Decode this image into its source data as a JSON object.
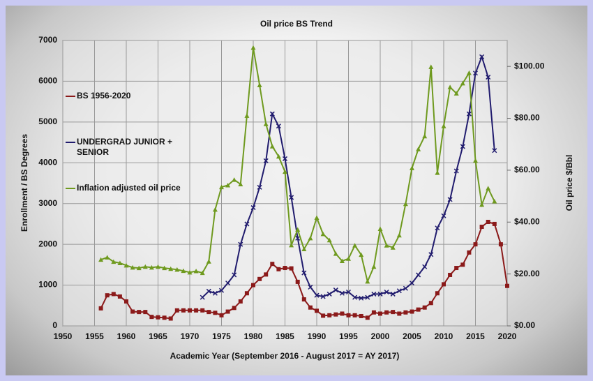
{
  "chart_data": {
    "type": "line",
    "title": "Oil price BS Trend",
    "x_label": "Academic Year (September 2016 - August 2017 = AY 2017)",
    "y_label": "Enrollment / BS Degrees",
    "y2_label": "Oil price $/Bbl",
    "x": [
      1956,
      1957,
      1958,
      1959,
      1960,
      1961,
      1962,
      1963,
      1964,
      1965,
      1966,
      1967,
      1968,
      1969,
      1970,
      1971,
      1972,
      1973,
      1974,
      1975,
      1976,
      1977,
      1978,
      1979,
      1980,
      1981,
      1982,
      1983,
      1984,
      1985,
      1986,
      1987,
      1988,
      1989,
      1990,
      1991,
      1992,
      1993,
      1994,
      1995,
      1996,
      1997,
      1998,
      1999,
      2000,
      2001,
      2002,
      2003,
      2004,
      2005,
      2006,
      2007,
      2008,
      2009,
      2010,
      2011,
      2012,
      2013,
      2014,
      2015,
      2016,
      2017,
      2018,
      2019,
      2020
    ],
    "xlim": [
      1950,
      2020
    ],
    "xticks": [
      1950,
      1955,
      1960,
      1965,
      1970,
      1975,
      1980,
      1985,
      1990,
      1995,
      2000,
      2005,
      2010,
      2015,
      2020
    ],
    "ylim": [
      0,
      7000
    ],
    "yticks": [
      0,
      1000,
      2000,
      3000,
      4000,
      5000,
      6000,
      7000
    ],
    "y2lim": [
      0,
      110
    ],
    "y2ticks": [
      {
        "value": 0,
        "label": "$0.00"
      },
      {
        "value": 20,
        "label": "$20.00"
      },
      {
        "value": 40,
        "label": "$40.00"
      },
      {
        "value": 60,
        "label": "$60.00"
      },
      {
        "value": 80,
        "label": "$80.00"
      },
      {
        "value": 100,
        "label": "$100.00"
      }
    ],
    "grid": true,
    "series": [
      {
        "name": "BS 1956-2020",
        "color": "#8b1a1a",
        "marker": "square",
        "values": [
          430,
          750,
          780,
          720,
          600,
          350,
          340,
          340,
          220,
          210,
          200,
          180,
          380,
          380,
          380,
          380,
          380,
          340,
          320,
          260,
          350,
          440,
          600,
          800,
          1000,
          1150,
          1260,
          1520,
          1390,
          1420,
          1410,
          1080,
          650,
          450,
          370,
          250,
          260,
          280,
          300,
          260,
          260,
          240,
          200,
          330,
          300,
          330,
          340,
          300,
          330,
          350,
          400,
          450,
          560,
          800,
          1020,
          1250,
          1420,
          1500,
          1800,
          2000,
          2430,
          2550,
          2500,
          2000,
          980
        ]
      },
      {
        "name": "UNDERGRAD JUNIOR + SENIOR",
        "color": "#211c6e",
        "marker": "x",
        "values": [
          null,
          null,
          null,
          null,
          null,
          null,
          null,
          null,
          null,
          null,
          null,
          null,
          null,
          null,
          null,
          null,
          700,
          850,
          800,
          870,
          1050,
          1250,
          2000,
          2500,
          2900,
          3400,
          4050,
          5200,
          4900,
          4100,
          3150,
          2150,
          1300,
          950,
          750,
          720,
          780,
          880,
          800,
          830,
          700,
          680,
          700,
          780,
          780,
          830,
          780,
          860,
          920,
          1050,
          1250,
          1450,
          1750,
          2400,
          2700,
          3100,
          3800,
          4400,
          5200,
          6200,
          6600,
          6100,
          4300,
          null,
          null
        ]
      },
      {
        "name": "Inflation adjusted oil price",
        "color": "#6f9a1f",
        "marker": "triangle",
        "axis": "y2",
        "values": [
          25.5,
          26.4,
          24.7,
          24.2,
          23.3,
          22.5,
          22.3,
          22.8,
          22.5,
          22.8,
          22.3,
          22.0,
          21.7,
          21.2,
          20.6,
          21.1,
          20.4,
          24.8,
          44.8,
          53.5,
          54.2,
          56.3,
          54.6,
          81,
          107.2,
          92.8,
          77.8,
          69.2,
          65.3,
          59.4,
          31.1,
          37.1,
          29.6,
          33.8,
          41.7,
          35.4,
          33,
          27.8,
          25,
          25.9,
          31,
          27.4,
          17.1,
          22.8,
          37.4,
          31,
          30.2,
          34.9,
          47,
          60.8,
          68.1,
          73.1,
          99.8,
          59,
          77,
          92,
          89.6,
          93.5,
          97.5,
          63.7,
          46.7,
          53,
          48,
          null,
          null
        ]
      }
    ]
  }
}
